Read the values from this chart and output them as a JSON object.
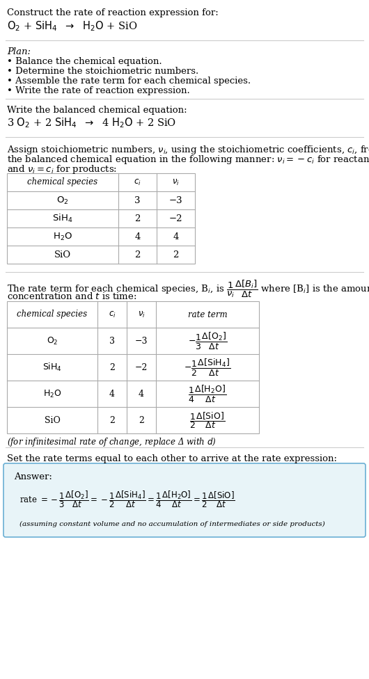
{
  "bg_color": "#ffffff",
  "text_color": "#000000",
  "section1_title": "Construct the rate of reaction expression for:",
  "section2_title": "Plan:",
  "section2_bullets": [
    "• Balance the chemical equation.",
    "• Determine the stoichiometric numbers.",
    "• Assemble the rate term for each chemical species.",
    "• Write the rate of reaction expression."
  ],
  "section3_title": "Write the balanced chemical equation:",
  "section4_intro_line1": "Assign stoichiometric numbers, $\\nu_i$, using the stoichiometric coefficients, $c_i$, from",
  "section4_intro_line2": "the balanced chemical equation in the following manner: $\\nu_i = -c_i$ for reactants",
  "section4_intro_line3": "and $\\nu_i = c_i$ for products:",
  "table1_headers": [
    "chemical species",
    "$c_i$",
    "$\\nu_i$"
  ],
  "table1_rows": [
    [
      "$\\mathrm{O_2}$",
      "3",
      "−3"
    ],
    [
      "$\\mathrm{SiH_4}$",
      "2",
      "−2"
    ],
    [
      "$\\mathrm{H_2O}$",
      "4",
      "4"
    ],
    [
      "SiO",
      "2",
      "2"
    ]
  ],
  "section5_intro_line1": "The rate term for each chemical species, B$_i$, is $\\dfrac{1}{\\nu_i}\\dfrac{\\Delta[B_i]}{\\Delta t}$ where [B$_i$] is the amount",
  "section5_intro_line2": "concentration and $t$ is time:",
  "table2_headers": [
    "chemical species",
    "$c_i$",
    "$\\nu_i$",
    "rate term"
  ],
  "table2_rows": [
    [
      "$\\mathrm{O_2}$",
      "3",
      "−3",
      "$-\\dfrac{1}{3}\\dfrac{\\Delta[\\mathrm{O_2}]}{\\Delta t}$"
    ],
    [
      "$\\mathrm{SiH_4}$",
      "2",
      "−2",
      "$-\\dfrac{1}{2}\\dfrac{\\Delta[\\mathrm{SiH_4}]}{\\Delta t}$"
    ],
    [
      "$\\mathrm{H_2O}$",
      "4",
      "4",
      "$\\dfrac{1}{4}\\dfrac{\\Delta[\\mathrm{H_2O}]}{\\Delta t}$"
    ],
    [
      "SiO",
      "2",
      "2",
      "$\\dfrac{1}{2}\\dfrac{\\Delta[\\mathrm{SiO}]}{\\Delta t}$"
    ]
  ],
  "section5_note": "(for infinitesimal rate of change, replace Δ with $d$)",
  "section6_title": "Set the rate terms equal to each other to arrive at the rate expression:",
  "answer_box_color": "#e8f4f8",
  "answer_box_border": "#6aafd4",
  "answer_label": "Answer:",
  "answer_note": "(assuming constant volume and no accumulation of intermediates or side products)"
}
